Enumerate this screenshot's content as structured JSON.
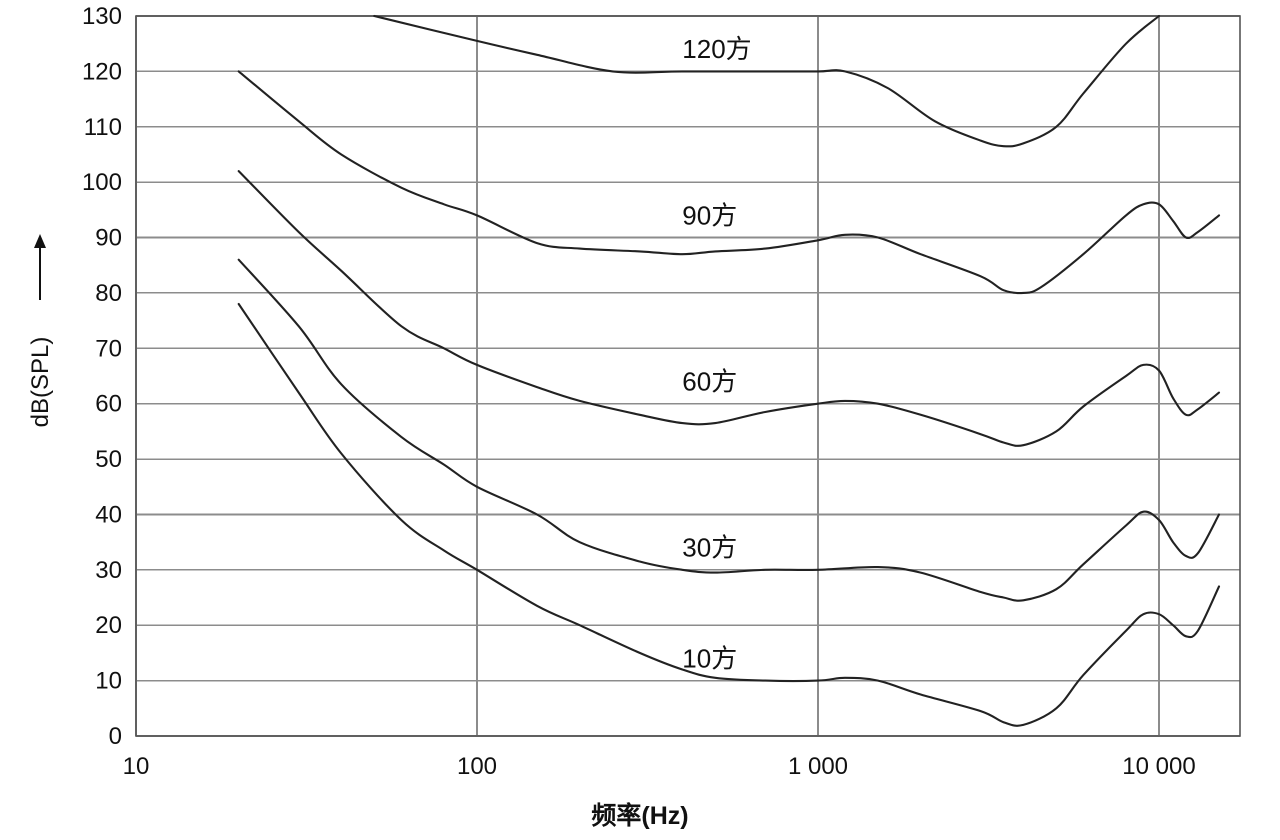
{
  "chart_data": {
    "type": "line",
    "xlabel": "频率(Hz)",
    "ylabel": "dB(SPL)",
    "xscale": "log",
    "xlim": [
      10,
      15000
    ],
    "ylim": [
      0,
      130
    ],
    "grid": true,
    "x_ticks": [
      10,
      100,
      1000,
      10000
    ],
    "x_tick_labels": [
      "10",
      "100",
      "1 000",
      "10 000"
    ],
    "y_ticks": [
      0,
      10,
      20,
      30,
      40,
      50,
      60,
      70,
      80,
      90,
      100,
      110,
      120,
      130
    ],
    "y_tick_labels": [
      "0",
      "10",
      "20",
      "30",
      "40",
      "50",
      "60",
      "70",
      "80",
      "90",
      "100",
      "110",
      "120",
      "130"
    ],
    "annotations": [
      {
        "text": "120方",
        "x": 400,
        "y": 124
      },
      {
        "text": "90方",
        "x": 400,
        "y": 94
      },
      {
        "text": "60方",
        "x": 400,
        "y": 64
      },
      {
        "text": "30方",
        "x": 400,
        "y": 34
      },
      {
        "text": "10方",
        "x": 400,
        "y": 14
      }
    ],
    "series": [
      {
        "points": [
          [
            50,
            130
          ],
          [
            100,
            125.5
          ],
          [
            150,
            123
          ],
          [
            250,
            120
          ],
          [
            400,
            120
          ],
          [
            700,
            120
          ],
          [
            1000,
            120
          ],
          [
            1200,
            120
          ],
          [
            1600,
            117
          ],
          [
            2200,
            111
          ],
          [
            3000,
            107.5
          ],
          [
            3500,
            106.5
          ],
          [
            4000,
            107
          ],
          [
            5000,
            110
          ],
          [
            6000,
            116
          ],
          [
            8000,
            125
          ],
          [
            10000,
            130
          ]
        ]
      },
      {
        "points": [
          [
            20,
            120
          ],
          [
            30,
            111
          ],
          [
            40,
            105
          ],
          [
            60,
            99
          ],
          [
            80,
            96
          ],
          [
            100,
            94
          ],
          [
            150,
            89
          ],
          [
            200,
            88
          ],
          [
            300,
            87.5
          ],
          [
            400,
            87
          ],
          [
            500,
            87.5
          ],
          [
            700,
            88
          ],
          [
            1000,
            89.5
          ],
          [
            1200,
            90.5
          ],
          [
            1500,
            90
          ],
          [
            2000,
            87
          ],
          [
            3000,
            83
          ],
          [
            3500,
            80.5
          ],
          [
            4000,
            80
          ],
          [
            4500,
            81
          ],
          [
            6000,
            87
          ],
          [
            8000,
            94
          ],
          [
            9000,
            96
          ],
          [
            10000,
            96
          ],
          [
            11000,
            93
          ],
          [
            12000,
            90
          ],
          [
            13000,
            91
          ],
          [
            15000,
            94
          ]
        ]
      },
      {
        "points": [
          [
            20,
            102
          ],
          [
            30,
            91
          ],
          [
            40,
            84
          ],
          [
            60,
            74
          ],
          [
            80,
            70
          ],
          [
            100,
            67
          ],
          [
            150,
            63
          ],
          [
            200,
            60.5
          ],
          [
            300,
            58
          ],
          [
            400,
            56.5
          ],
          [
            500,
            56.5
          ],
          [
            700,
            58.5
          ],
          [
            1000,
            60
          ],
          [
            1200,
            60.5
          ],
          [
            1500,
            60
          ],
          [
            2000,
            58
          ],
          [
            3000,
            54.5
          ],
          [
            3500,
            53
          ],
          [
            4000,
            52.5
          ],
          [
            5000,
            55
          ],
          [
            6000,
            59.5
          ],
          [
            8000,
            65
          ],
          [
            9000,
            67
          ],
          [
            10000,
            66
          ],
          [
            11000,
            61
          ],
          [
            12000,
            58
          ],
          [
            13000,
            59
          ],
          [
            15000,
            62
          ]
        ]
      },
      {
        "points": [
          [
            20,
            86
          ],
          [
            30,
            74
          ],
          [
            40,
            63.5
          ],
          [
            60,
            54
          ],
          [
            80,
            49
          ],
          [
            100,
            45
          ],
          [
            150,
            40
          ],
          [
            200,
            35
          ],
          [
            300,
            31.5
          ],
          [
            400,
            30
          ],
          [
            500,
            29.5
          ],
          [
            700,
            30
          ],
          [
            1000,
            30
          ],
          [
            1500,
            30.5
          ],
          [
            2000,
            29.5
          ],
          [
            3000,
            26
          ],
          [
            3500,
            25
          ],
          [
            4000,
            24.5
          ],
          [
            5000,
            26.5
          ],
          [
            6000,
            31
          ],
          [
            8000,
            38
          ],
          [
            9000,
            40.5
          ],
          [
            10000,
            39
          ],
          [
            11000,
            35
          ],
          [
            12000,
            32.5
          ],
          [
            13000,
            33
          ],
          [
            15000,
            40
          ]
        ]
      },
      {
        "points": [
          [
            20,
            78
          ],
          [
            30,
            62
          ],
          [
            40,
            51
          ],
          [
            60,
            39
          ],
          [
            80,
            33.5
          ],
          [
            100,
            30
          ],
          [
            150,
            23.5
          ],
          [
            200,
            20
          ],
          [
            300,
            15
          ],
          [
            400,
            12
          ],
          [
            500,
            10.5
          ],
          [
            700,
            10
          ],
          [
            1000,
            10
          ],
          [
            1200,
            10.5
          ],
          [
            1500,
            10
          ],
          [
            2000,
            7.5
          ],
          [
            3000,
            4.5
          ],
          [
            3500,
            2.5
          ],
          [
            4000,
            2
          ],
          [
            5000,
            5
          ],
          [
            6000,
            11
          ],
          [
            8000,
            19
          ],
          [
            9000,
            22
          ],
          [
            10000,
            22
          ],
          [
            11000,
            20
          ],
          [
            12000,
            18
          ],
          [
            13000,
            19
          ],
          [
            15000,
            27
          ]
        ]
      }
    ]
  }
}
